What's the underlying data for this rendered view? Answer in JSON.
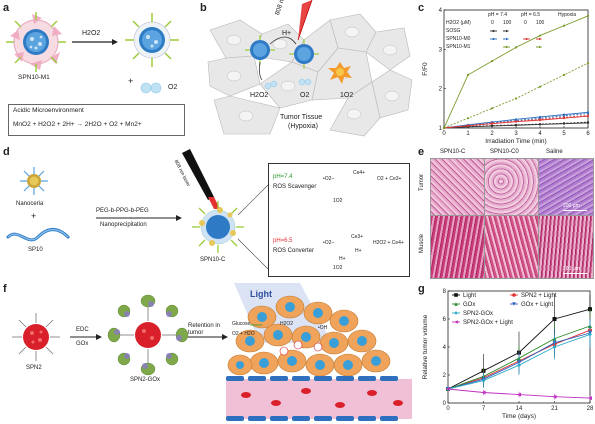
{
  "panel_labels": {
    "a": "a",
    "b": "b",
    "c": "c",
    "d": "d",
    "e": "e",
    "f": "f",
    "g": "g"
  },
  "panel_a": {
    "reagent": "H2O2",
    "nanoparticle_label": "SPN10-M1",
    "product_plus": "+",
    "product_o2": "O2",
    "box_title": "Acidic Microenvironment",
    "box_equation": "MnO2 + H2O2 + 2H+ → 2H2O + O2 + Mn2+"
  },
  "panel_b": {
    "laser_label": "808 nm",
    "hplus": "H+",
    "h2o2": "H2O2",
    "o2": "O2",
    "singlet_o2": "1O2",
    "tissue_label": "Tumor Tissue",
    "tissue_sub": "(Hypoxia)"
  },
  "panel_c": {
    "legend_header_ph1": "pH = 7.4",
    "legend_header_ph2": "pH = 6.5",
    "legend_header_cond": "Hypoxia",
    "legend_conc_label": "H2O2 (μM)",
    "legend_conc_values": [
      "0",
      "100",
      "0",
      "100"
    ],
    "legend_rows": [
      "SOSG",
      "SPN10-M0",
      "SPN10-M1"
    ],
    "colors": {
      "sosg": "#333333",
      "m0_74": "#2e6fbf",
      "m0_65": "#e03a3a",
      "m1": "#7a9a2a"
    }
  },
  "panel_d": {
    "nanoceria": "Nanoceria",
    "plus": "+",
    "sp10": "SP10",
    "arrow_top": "PEG-b-PPG-b-PEG",
    "arrow_bottom": "Nanoprecipitation",
    "laser": "808 nm laser",
    "product": "SPN10-C",
    "ph74": "pH=7.4",
    "scavenger": "ROS Scavenger",
    "ph65": "pH=6.5",
    "converter": "ROS Converter",
    "o2_radical": "•O2−",
    "singlet": "1O2",
    "ce4": "Ce4+",
    "ce3": "Ce3+",
    "hplus": "H+",
    "eq_scavenger": "O2 + Ce3+",
    "eq_converter": "H2O2 + Ce4+",
    "color_ph74": "#2a9a2a",
    "color_ph65": "#e03030"
  },
  "panel_e": {
    "col_headers": [
      "SPN10-C",
      "SPN10-C0",
      "Saline"
    ],
    "row_headers": [
      "Tumor",
      "Muscle"
    ],
    "scale_bar": "200 μm"
  },
  "panel_f": {
    "spn2": "SPN2",
    "arrow_top": "EDC",
    "arrow_bottom": "GOx",
    "spn2_gox": "SPN2-GOx",
    "retention": "Retention in tumor",
    "light": "Light",
    "glucose": "Glucose",
    "o2_h2o": "O2 + H2O",
    "h2o2": "H2O2",
    "oh": "•OH"
  },
  "chart_data": [
    {
      "type": "line",
      "xlabel": "Irradiation Time (min)",
      "ylabel": "F/F0",
      "x": [
        0,
        1,
        2,
        3,
        4,
        5,
        6
      ],
      "xlim": [
        0,
        6
      ],
      "ylim": [
        1,
        4
      ],
      "xticks": [
        0,
        1,
        2,
        3,
        4,
        5,
        6
      ],
      "yticks": [
        1,
        2,
        3,
        4
      ],
      "series": [
        {
          "values": [
            1.0,
            1.03,
            1.05,
            1.07,
            1.09,
            1.11,
            1.13
          ],
          "color": "#333333",
          "dash": "none"
        },
        {
          "values": [
            1.0,
            1.04,
            1.06,
            1.08,
            1.1,
            1.12,
            1.15
          ],
          "color": "#333333",
          "dash": "2,1.5"
        },
        {
          "values": [
            1.0,
            1.08,
            1.15,
            1.22,
            1.28,
            1.34,
            1.4
          ],
          "color": "#2e6fbf",
          "dash": "none"
        },
        {
          "values": [
            1.0,
            1.07,
            1.13,
            1.19,
            1.25,
            1.31,
            1.37
          ],
          "color": "#2e6fbf",
          "dash": "2,1.5"
        },
        {
          "values": [
            1.0,
            1.06,
            1.11,
            1.16,
            1.2,
            1.25,
            1.3
          ],
          "color": "#e03a3a",
          "dash": "none"
        },
        {
          "values": [
            1.0,
            1.06,
            1.12,
            1.17,
            1.22,
            1.27,
            1.32
          ],
          "color": "#e03a3a",
          "dash": "2,1.5"
        },
        {
          "values": [
            1.0,
            1.25,
            1.5,
            1.75,
            2.05,
            2.35,
            2.65
          ],
          "color": "#7a9a2a",
          "dash": "2,1.5"
        },
        {
          "values": [
            1.0,
            2.35,
            2.7,
            3.05,
            3.35,
            3.6,
            3.85
          ],
          "color": "#7a9a2a",
          "dash": "none"
        }
      ]
    },
    {
      "type": "line",
      "xlabel": "Time (days)",
      "ylabel": "Relative tumor volume",
      "x": [
        0,
        7,
        14,
        21,
        28
      ],
      "xlim": [
        0,
        28
      ],
      "ylim": [
        0,
        8
      ],
      "xticks": [
        0,
        7,
        14,
        21,
        28
      ],
      "yticks": [
        0,
        2,
        4,
        6,
        8
      ],
      "series": [
        {
          "name": "Light",
          "values": [
            1.0,
            2.3,
            3.6,
            6.0,
            6.7
          ],
          "err": [
            0,
            1.2,
            1.5,
            1.8,
            1.0
          ],
          "color": "#111111",
          "marker": "square"
        },
        {
          "name": "SPN2 + Light",
          "values": [
            1.0,
            1.8,
            3.0,
            4.2,
            5.2
          ],
          "err": [
            0,
            0.6,
            0.8,
            1.0,
            1.1
          ],
          "color": "#e03030",
          "marker": "circle"
        },
        {
          "name": "GOx",
          "values": [
            1.0,
            1.9,
            3.2,
            4.6,
            5.5
          ],
          "err": [
            0,
            0.6,
            0.9,
            1.1,
            1.2
          ],
          "color": "#2a8a2a",
          "marker": "triangle-up"
        },
        {
          "name": "GOx + Light",
          "values": [
            1.0,
            1.7,
            2.9,
            4.3,
            5.0
          ],
          "err": [
            0,
            0.5,
            0.8,
            1.0,
            1.1
          ],
          "color": "#2e5fbf",
          "marker": "triangle-down"
        },
        {
          "name": "SPN2-GOx",
          "values": [
            1.0,
            1.6,
            2.7,
            4.0,
            4.9
          ],
          "err": [
            0,
            0.5,
            0.7,
            0.9,
            1.0
          ],
          "color": "#2aa8c8",
          "marker": "diamond"
        },
        {
          "name": "SPN2-GOx + Light",
          "values": [
            1.0,
            0.75,
            0.6,
            0.45,
            0.35
          ],
          "err": [
            0,
            0.2,
            0.2,
            0.2,
            0.2
          ],
          "color": "#c030c0",
          "marker": "triangle-left"
        }
      ]
    }
  ]
}
